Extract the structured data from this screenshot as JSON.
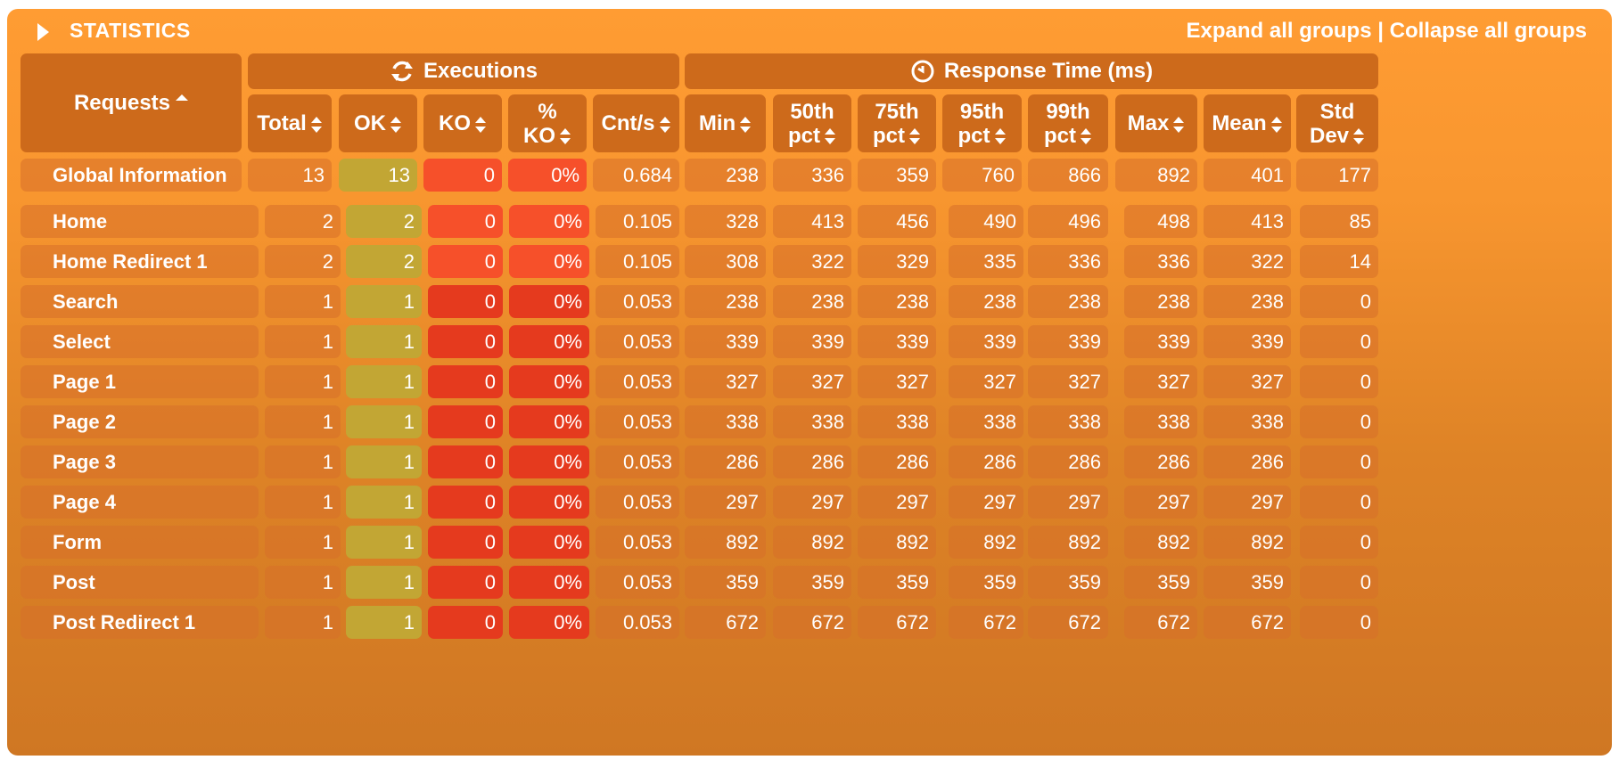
{
  "title": "STATISTICS",
  "expand_all": "Expand all groups",
  "separator": "|",
  "collapse_all": "Collapse all groups",
  "colors": {
    "ok": "#c2a634",
    "ko": "#f6502a",
    "header": "#cd6a1b",
    "panel": "#f8962f"
  },
  "groups": {
    "executions": "Executions",
    "response_time": "Response Time (ms)"
  },
  "columns": {
    "requests": "Requests",
    "total": "Total",
    "ok": "OK",
    "ko": "KO",
    "pct_ko_1": "%",
    "pct_ko_2": "KO",
    "cnt": "Cnt/s",
    "min": "Min",
    "p50_1": "50th",
    "p50_2": "pct",
    "p75_1": "75th",
    "p75_2": "pct",
    "p95_1": "95th",
    "p95_2": "pct",
    "p99_1": "99th",
    "p99_2": "pct",
    "max": "Max",
    "mean": "Mean",
    "std_1": "Std",
    "std_2": "Dev"
  },
  "global": {
    "name": "Global Information",
    "total": "13",
    "ok": "13",
    "ko": "0",
    "pct": "0%",
    "cnt": "0.684",
    "min": "238",
    "p50": "336",
    "p75": "359",
    "p95": "760",
    "p99": "866",
    "max": "892",
    "mean": "401",
    "std": "177"
  },
  "rows": [
    {
      "name": "Home",
      "total": "2",
      "ok": "2",
      "ko": "0",
      "pct": "0%",
      "cnt": "0.105",
      "min": "328",
      "p50": "413",
      "p75": "456",
      "p95": "490",
      "p99": "496",
      "max": "498",
      "mean": "413",
      "std": "85"
    },
    {
      "name": "Home Redirect 1",
      "total": "2",
      "ok": "2",
      "ko": "0",
      "pct": "0%",
      "cnt": "0.105",
      "min": "308",
      "p50": "322",
      "p75": "329",
      "p95": "335",
      "p99": "336",
      "max": "336",
      "mean": "322",
      "std": "14"
    },
    {
      "name": "Search",
      "total": "1",
      "ok": "1",
      "ko": "0",
      "pct": "0%",
      "cnt": "0.053",
      "min": "238",
      "p50": "238",
      "p75": "238",
      "p95": "238",
      "p99": "238",
      "max": "238",
      "mean": "238",
      "std": "0"
    },
    {
      "name": "Select",
      "total": "1",
      "ok": "1",
      "ko": "0",
      "pct": "0%",
      "cnt": "0.053",
      "min": "339",
      "p50": "339",
      "p75": "339",
      "p95": "339",
      "p99": "339",
      "max": "339",
      "mean": "339",
      "std": "0"
    },
    {
      "name": "Page 1",
      "total": "1",
      "ok": "1",
      "ko": "0",
      "pct": "0%",
      "cnt": "0.053",
      "min": "327",
      "p50": "327",
      "p75": "327",
      "p95": "327",
      "p99": "327",
      "max": "327",
      "mean": "327",
      "std": "0"
    },
    {
      "name": "Page 2",
      "total": "1",
      "ok": "1",
      "ko": "0",
      "pct": "0%",
      "cnt": "0.053",
      "min": "338",
      "p50": "338",
      "p75": "338",
      "p95": "338",
      "p99": "338",
      "max": "338",
      "mean": "338",
      "std": "0"
    },
    {
      "name": "Page 3",
      "total": "1",
      "ok": "1",
      "ko": "0",
      "pct": "0%",
      "cnt": "0.053",
      "min": "286",
      "p50": "286",
      "p75": "286",
      "p95": "286",
      "p99": "286",
      "max": "286",
      "mean": "286",
      "std": "0"
    },
    {
      "name": "Page 4",
      "total": "1",
      "ok": "1",
      "ko": "0",
      "pct": "0%",
      "cnt": "0.053",
      "min": "297",
      "p50": "297",
      "p75": "297",
      "p95": "297",
      "p99": "297",
      "max": "297",
      "mean": "297",
      "std": "0"
    },
    {
      "name": "Form",
      "total": "1",
      "ok": "1",
      "ko": "0",
      "pct": "0%",
      "cnt": "0.053",
      "min": "892",
      "p50": "892",
      "p75": "892",
      "p95": "892",
      "p99": "892",
      "max": "892",
      "mean": "892",
      "std": "0"
    },
    {
      "name": "Post",
      "total": "1",
      "ok": "1",
      "ko": "0",
      "pct": "0%",
      "cnt": "0.053",
      "min": "359",
      "p50": "359",
      "p75": "359",
      "p95": "359",
      "p99": "359",
      "max": "359",
      "mean": "359",
      "std": "0"
    },
    {
      "name": "Post Redirect 1",
      "total": "1",
      "ok": "1",
      "ko": "0",
      "pct": "0%",
      "cnt": "0.053",
      "min": "672",
      "p50": "672",
      "p75": "672",
      "p95": "672",
      "p99": "672",
      "max": "672",
      "mean": "672",
      "std": "0"
    }
  ]
}
